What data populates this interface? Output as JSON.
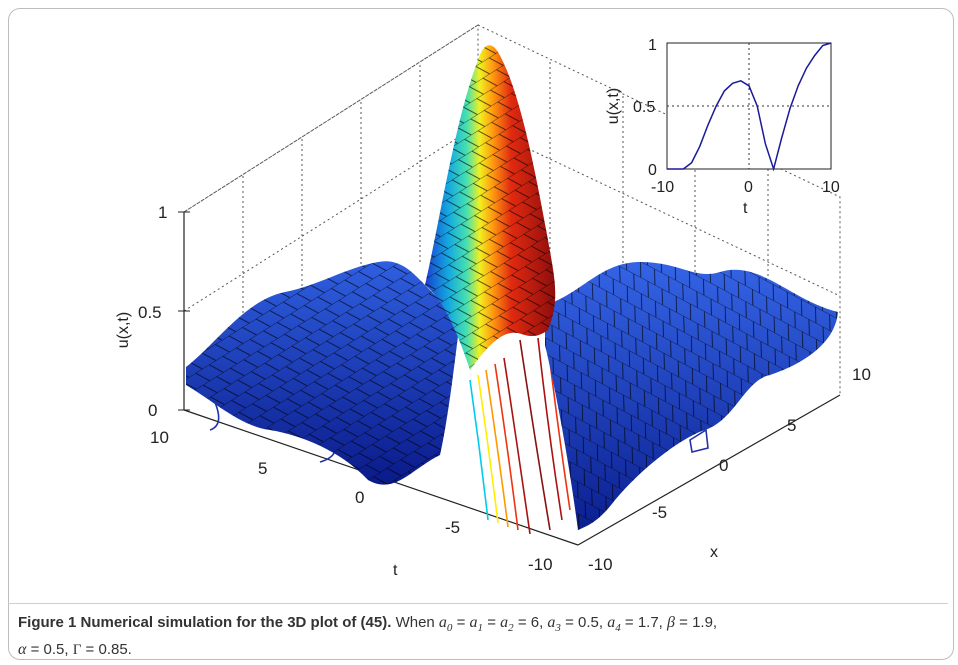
{
  "chart_data": [
    {
      "type": "surface",
      "zlabel": "u(x,t)",
      "xlabel": "x",
      "tlabel": "t",
      "z_ticks": [
        "0",
        "0.5",
        "1"
      ],
      "t_ticks": [
        "10",
        "5",
        "0",
        "-5",
        "-10"
      ],
      "x_ticks": [
        "-10",
        "-5",
        "0",
        "5",
        "10"
      ],
      "x_range": [
        -10,
        10
      ],
      "t_range": [
        -10,
        10
      ],
      "z_range": [
        0,
        1
      ],
      "peak_value": 1,
      "grid": true,
      "colormap": "jet",
      "contours_on_base": true
    },
    {
      "type": "line",
      "inset": true,
      "xlabel": "t",
      "ylabel": "u(x,t)",
      "x_ticks": [
        "-10",
        "0",
        "10"
      ],
      "y_ticks": [
        "0",
        "0.5",
        "1"
      ],
      "xlim": [
        -10,
        10
      ],
      "ylim": [
        0,
        1
      ],
      "grid": true,
      "color": "#1a1a9a",
      "points": [
        [
          -10,
          0
        ],
        [
          -8,
          0
        ],
        [
          -7,
          0.05
        ],
        [
          -6,
          0.18
        ],
        [
          -5,
          0.35
        ],
        [
          -4,
          0.5
        ],
        [
          -3,
          0.62
        ],
        [
          -2,
          0.68
        ],
        [
          -1,
          0.7
        ],
        [
          0,
          0.66
        ],
        [
          1,
          0.5
        ],
        [
          2,
          0.2
        ],
        [
          3,
          0
        ],
        [
          4,
          0.25
        ],
        [
          5,
          0.48
        ],
        [
          6,
          0.66
        ],
        [
          7,
          0.8
        ],
        [
          8,
          0.9
        ],
        [
          9,
          0.98
        ],
        [
          10,
          1
        ]
      ]
    }
  ],
  "caption": {
    "title": "Figure 1  Numerical simulation for the 3D plot of (45).",
    "when": "When",
    "a0": "a",
    "eq_chain": "= 6,",
    "a3": "= 0.5,",
    "a4": "= 1.7,",
    "beta": "= 1.9,",
    "alpha": "= 0.5,",
    "gamma": "= 0.85."
  }
}
